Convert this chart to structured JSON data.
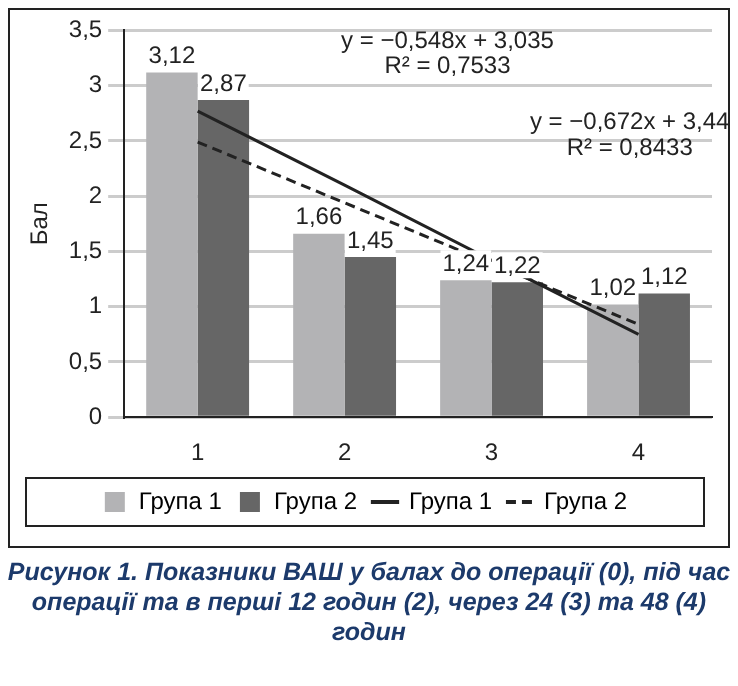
{
  "chart_data": {
    "type": "bar",
    "ylabel": "Бал",
    "categories": [
      "1",
      "2",
      "3",
      "4"
    ],
    "series": [
      {
        "name": "Група 1",
        "color": "#b3b3b5",
        "values": [
          3.12,
          1.66,
          1.24,
          1.02
        ],
        "value_labels": [
          "3,12",
          "1,66",
          "1,24",
          "1,02"
        ]
      },
      {
        "name": "Група 2",
        "color": "#666666",
        "values": [
          2.87,
          1.45,
          1.22,
          1.12
        ],
        "value_labels": [
          "2,87",
          "1,45",
          "1,22",
          "1,12"
        ]
      },
      {
        "name": "Група 1",
        "type": "line",
        "color": "#222222",
        "line_style": "solid",
        "values": [
          2.77,
          2.1,
          1.42,
          0.75
        ]
      },
      {
        "name": "Група 2",
        "type": "line",
        "color": "#222222",
        "line_style": "dashed",
        "values": [
          2.49,
          1.94,
          1.39,
          0.84
        ]
      }
    ],
    "ylim": [
      0,
      3.5
    ],
    "yticks": [
      0,
      {
        "value": 0.5,
        "label": "0,5"
      },
      1,
      {
        "value": 1.5,
        "label": "1,5"
      },
      2,
      {
        "value": 2.5,
        "label": "2,5"
      },
      3,
      {
        "value": 3.5,
        "label": "3,5"
      }
    ],
    "grid": "y",
    "legend": "bottom",
    "marker": "none",
    "annotations": [
      "y = −0,548x + 3,035",
      "R² = 0,7533",
      "y = −0,672x + 3,44",
      "R² = 0,8433",
      "Рисунок 1. Показники ВАШ у балах до операції (0), під час операції та в перші 12 годин (2), через 24 (3) та 48 (4) годин"
    ]
  }
}
